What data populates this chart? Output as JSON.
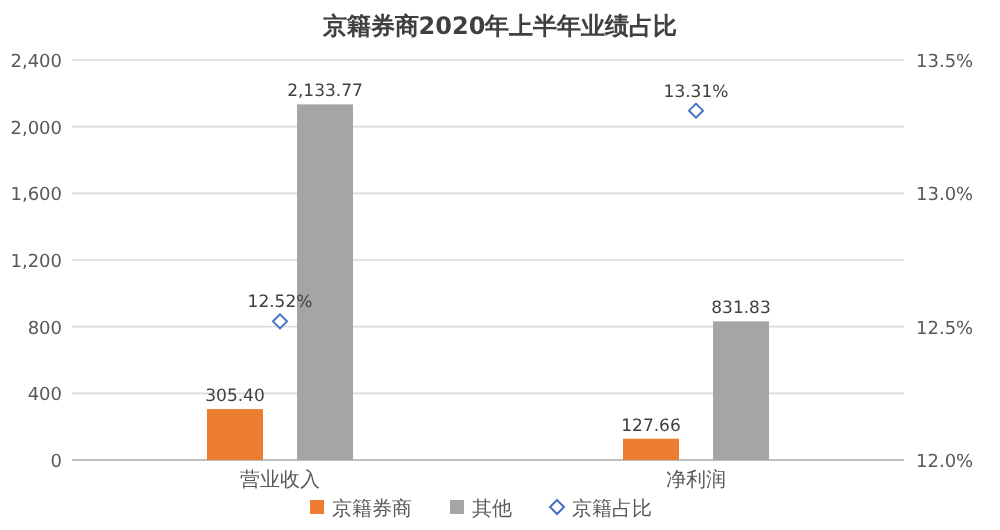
{
  "chart_data": {
    "type": "bar",
    "title": "京籍券商2020年上半年业绩占比",
    "categories": [
      "营业收入",
      "净利润"
    ],
    "series": [
      {
        "name": "京籍券商",
        "color": "#ed7d31",
        "values": [
          305.4,
          127.66
        ],
        "value_labels": [
          "305.40",
          "127.66"
        ]
      },
      {
        "name": "其他",
        "color": "#a5a5a5",
        "values": [
          2133.77,
          831.83
        ],
        "value_labels": [
          "2,133.77",
          "831.83"
        ]
      },
      {
        "name": "京籍占比",
        "type": "scatter",
        "axis": "y2",
        "marker": "diamond",
        "color": "#4472c4",
        "values": [
          12.52,
          13.31
        ],
        "value_labels": [
          "12.52%",
          "13.31%"
        ]
      }
    ],
    "ylim": [
      0,
      2400
    ],
    "yticks": [
      {
        "value": 0,
        "label": "0"
      },
      {
        "value": 400,
        "label": "400"
      },
      {
        "value": 800,
        "label": "800"
      },
      {
        "value": 1200,
        "label": "1,200"
      },
      {
        "value": 1600,
        "label": "1,600"
      },
      {
        "value": 2000,
        "label": "2,000"
      },
      {
        "value": 2400,
        "label": "2,400"
      }
    ],
    "y2lim": [
      12.0,
      13.5
    ],
    "y2ticks": [
      {
        "value": 12.0,
        "label": "12.0%"
      },
      {
        "value": 12.5,
        "label": "12.5%"
      },
      {
        "value": 13.0,
        "label": "13.0%"
      },
      {
        "value": 13.5,
        "label": "13.5%"
      }
    ],
    "grid": "y",
    "legend": "bottom"
  }
}
